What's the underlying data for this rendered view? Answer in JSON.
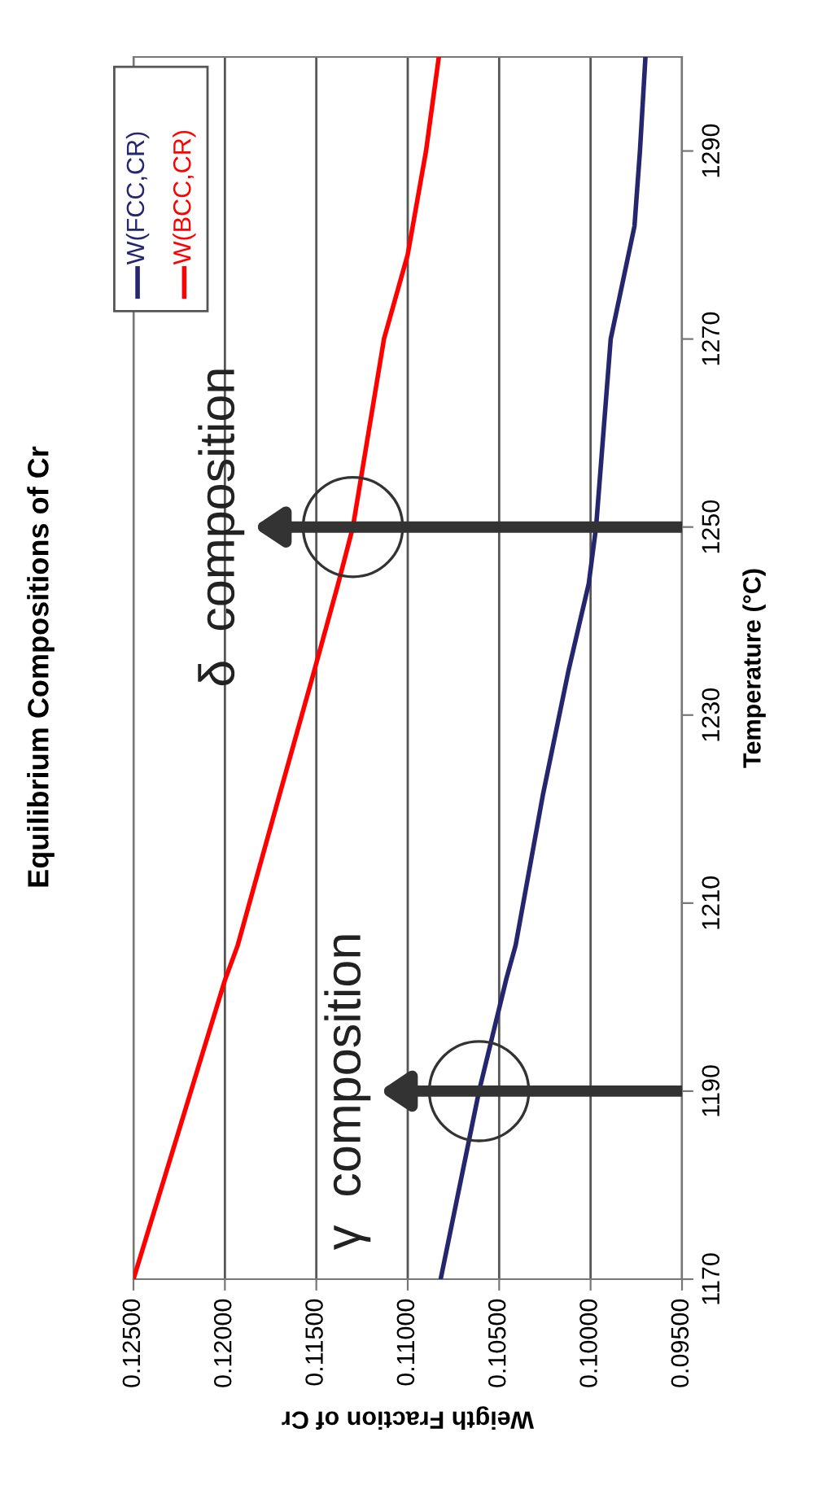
{
  "chart_data": {
    "type": "line",
    "title": "Equilibrium Compositions of Cr",
    "xlabel": "Weigth Fraction of Cr",
    "ylabel": "Temperature (°C)",
    "xlim": [
      0.125,
      0.095
    ],
    "xticks": [
      {
        "value": 0.125,
        "label": "0.12500"
      },
      {
        "value": 0.12,
        "label": "0.12000"
      },
      {
        "value": 0.115,
        "label": "0.11500"
      },
      {
        "value": 0.11,
        "label": "0.11000"
      },
      {
        "value": 0.105,
        "label": "0.10500"
      },
      {
        "value": 0.1,
        "label": "0.10000"
      },
      {
        "value": 0.095,
        "label": "0.09500"
      }
    ],
    "ylim": [
      1170,
      1300
    ],
    "yticks": [
      1170,
      1190,
      1210,
      1230,
      1250,
      1270,
      1290
    ],
    "grid": "x",
    "legend": "top left",
    "marker": "none",
    "line_style": "solid",
    "series": [
      {
        "name": "W(FCC,CR)",
        "color": "#26266e",
        "x": [
          0.1082,
          0.1061,
          0.1046,
          0.1041,
          0.1026,
          0.1012,
          0.1001,
          0.0997,
          0.0989,
          0.0976,
          0.0973,
          0.097
        ],
        "values": [
          1170,
          1190,
          1202,
          1205.5,
          1221.6,
          1234.8,
          1244,
          1250,
          1270,
          1282,
          1290,
          1300
        ]
      },
      {
        "name": "W(BCC,CR)",
        "color": "#ff0000",
        "x": [
          0.125,
          0.12,
          0.1193,
          0.117,
          0.1151,
          0.1138,
          0.113,
          0.1113,
          0.11,
          0.109,
          0.1083
        ],
        "values": [
          1170,
          1201.8,
          1205.5,
          1221.6,
          1234.8,
          1244,
          1250,
          1270,
          1279,
          1290,
          1300
        ]
      }
    ],
    "ref_lines": [
      {
        "axis": "y",
        "value": 1250,
        "color": "#333333"
      },
      {
        "axis": "y",
        "value": 1190,
        "color": "#333333"
      }
    ],
    "annotations": [
      {
        "text": "δ  composition",
        "x": 0.113,
        "y": 1250
      },
      {
        "text": "γ  composition",
        "x": 0.1061,
        "y": 1190
      }
    ]
  }
}
